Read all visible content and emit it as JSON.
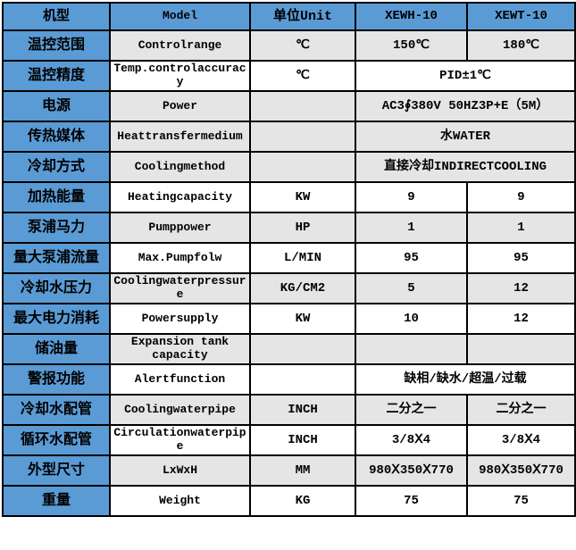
{
  "table": {
    "header": {
      "machine_type": "机型",
      "model": "Model",
      "unit": "单位Unit",
      "model_a": "XEWH-10",
      "model_b": "XEWT-10"
    },
    "rows": [
      {
        "name_cn": "温控范围",
        "name_en": "Controlrange",
        "unit": "℃",
        "value_a": "150℃",
        "value_b": "180℃",
        "shade": "gray"
      },
      {
        "name_cn": "温控精度",
        "name_en": "Temp.controlaccuracy",
        "unit": "℃",
        "value_merged": "PID±1℃",
        "shade": "white"
      },
      {
        "name_cn": "电源",
        "name_en": "Power",
        "unit": "",
        "value_merged": "AC3∮380V 50HZ3P+E（5M）",
        "shade": "gray"
      },
      {
        "name_cn": "传热媒体",
        "name_en": "Heattransfermedium",
        "unit": "",
        "value_merged": "水WATER",
        "shade": "gray"
      },
      {
        "name_cn": "冷却方式",
        "name_en": "Coolingmethod",
        "unit": "",
        "value_merged": "直接冷却INDIRECTCOOLING",
        "shade": "gray"
      },
      {
        "name_cn": "加热能量",
        "name_en": "Heatingcapacity",
        "unit": "KW",
        "value_a": "9",
        "value_b": "9",
        "shade": "white"
      },
      {
        "name_cn": "泵浦马力",
        "name_en": "Pumppower",
        "unit": "HP",
        "value_a": "1",
        "value_b": "1",
        "shade": "gray"
      },
      {
        "name_cn": "量大泵浦流量",
        "name_en": "Max.Pumpfolw",
        "unit": "L/MIN",
        "value_a": "95",
        "value_b": "95",
        "shade": "white"
      },
      {
        "name_cn": "冷却水压力",
        "name_en": "Coolingwaterpressure",
        "unit": "KG/CM2",
        "value_a": "5",
        "value_b": "12",
        "shade": "gray"
      },
      {
        "name_cn": "最大电力消耗",
        "name_en": "Powersupply",
        "unit": "KW",
        "value_a": "10",
        "value_b": "12",
        "shade": "white"
      },
      {
        "name_cn": "储油量",
        "name_en": "Expansion tank capacity",
        "unit": "",
        "value_a": "",
        "value_b": "",
        "shade": "gray"
      },
      {
        "name_cn": "警报功能",
        "name_en": "Alertfunction",
        "unit": "",
        "value_merged": "缺相/缺水/超温/过载",
        "shade": "white"
      },
      {
        "name_cn": "冷却水配管",
        "name_en": "Coolingwaterpipe",
        "unit": "INCH",
        "value_a": "二分之一",
        "value_b": "二分之一",
        "shade": "gray"
      },
      {
        "name_cn": "循环水配管",
        "name_en": "Circulationwaterpipe",
        "unit": "INCH",
        "value_a": "3/8Ⅹ4",
        "value_b": "3/8Ⅹ4",
        "shade": "white"
      },
      {
        "name_cn": "外型尺寸",
        "name_en": "LxWxH",
        "unit": "MM",
        "value_a": "980Ⅹ350Ⅹ770",
        "value_b": "980Ⅹ350Ⅹ770",
        "shade": "gray"
      },
      {
        "name_cn": "重量",
        "name_en": "Weight",
        "unit": "KG",
        "value_a": "75",
        "value_b": "75",
        "shade": "white"
      }
    ],
    "colors": {
      "header_blue": "#5B9BD5",
      "row_gray": "#E5E5E5",
      "row_white": "#FFFFFF",
      "border": "#000000"
    }
  }
}
